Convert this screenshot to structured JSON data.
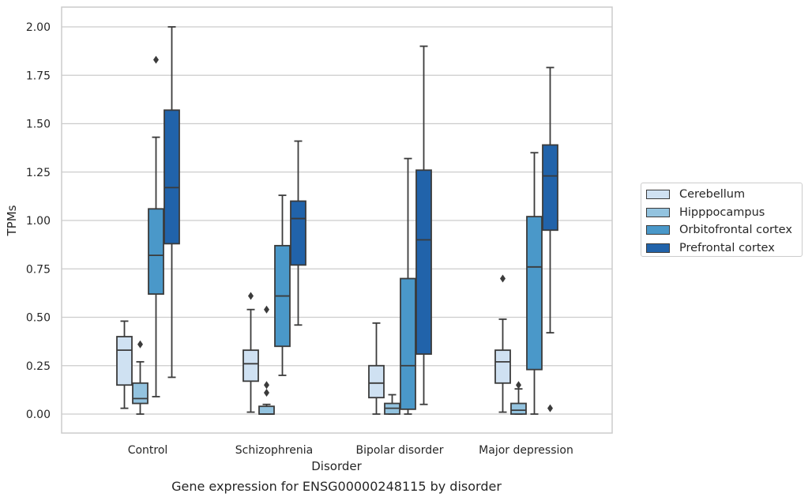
{
  "chart_data": {
    "type": "boxplot",
    "title": "Gene expression for ENSG00000248115 by disorder",
    "xlabel": "Disorder",
    "ylabel": "TPMs",
    "ylim": [
      -0.1,
      2.1
    ],
    "yticks": [
      "0.00",
      "0.25",
      "0.50",
      "0.75",
      "1.00",
      "1.25",
      "1.50",
      "1.75",
      "2.00"
    ],
    "categories": [
      "Control",
      "Schizophrenia",
      "Bipolar disorder",
      "Major depression"
    ],
    "grid": "horizontal",
    "legend_position": "right",
    "series": [
      {
        "name": "Cerebellum",
        "color": "#cfe1f2",
        "boxes": [
          {
            "whisker_low": 0.03,
            "q1": 0.15,
            "median": 0.33,
            "q3": 0.4,
            "whisker_high": 0.48,
            "outliers": []
          },
          {
            "whisker_low": 0.01,
            "q1": 0.17,
            "median": 0.26,
            "q3": 0.33,
            "whisker_high": 0.54,
            "outliers": [
              0.61
            ]
          },
          {
            "whisker_low": 0.0,
            "q1": 0.085,
            "median": 0.16,
            "q3": 0.25,
            "whisker_high": 0.47,
            "outliers": []
          },
          {
            "whisker_low": 0.01,
            "q1": 0.16,
            "median": 0.27,
            "q3": 0.33,
            "whisker_high": 0.49,
            "outliers": [
              0.7
            ]
          }
        ]
      },
      {
        "name": "Hipppocampus",
        "color": "#93c3df",
        "boxes": [
          {
            "whisker_low": 0.0,
            "q1": 0.055,
            "median": 0.08,
            "q3": 0.16,
            "whisker_high": 0.27,
            "outliers": [
              0.36
            ]
          },
          {
            "whisker_low": 0.0,
            "q1": 0.0,
            "median": 0.0,
            "q3": 0.04,
            "whisker_high": 0.05,
            "outliers": [
              0.11,
              0.15,
              0.54
            ]
          },
          {
            "whisker_low": 0.0,
            "q1": 0.0,
            "median": 0.03,
            "q3": 0.055,
            "whisker_high": 0.1,
            "outliers": []
          },
          {
            "whisker_low": 0.0,
            "q1": 0.0,
            "median": 0.02,
            "q3": 0.055,
            "whisker_high": 0.13,
            "outliers": [
              0.15
            ]
          }
        ]
      },
      {
        "name": "Orbitofrontal cortex",
        "color": "#4a98c9",
        "boxes": [
          {
            "whisker_low": 0.09,
            "q1": 0.62,
            "median": 0.82,
            "q3": 1.06,
            "whisker_high": 1.43,
            "outliers": [
              1.83
            ]
          },
          {
            "whisker_low": 0.2,
            "q1": 0.35,
            "median": 0.61,
            "q3": 0.87,
            "whisker_high": 1.13,
            "outliers": []
          },
          {
            "whisker_low": 0.0,
            "q1": 0.025,
            "median": 0.25,
            "q3": 0.7,
            "whisker_high": 1.32,
            "outliers": []
          },
          {
            "whisker_low": 0.0,
            "q1": 0.23,
            "median": 0.76,
            "q3": 1.02,
            "whisker_high": 1.35,
            "outliers": []
          }
        ]
      },
      {
        "name": "Prefrontal cortex",
        "color": "#2163aa",
        "boxes": [
          {
            "whisker_low": 0.19,
            "q1": 0.88,
            "median": 1.17,
            "q3": 1.57,
            "whisker_high": 2.0,
            "outliers": []
          },
          {
            "whisker_low": 0.46,
            "q1": 0.77,
            "median": 1.01,
            "q3": 1.1,
            "whisker_high": 1.41,
            "outliers": []
          },
          {
            "whisker_low": 0.05,
            "q1": 0.31,
            "median": 0.9,
            "q3": 1.26,
            "whisker_high": 1.9,
            "outliers": []
          },
          {
            "whisker_low": 0.42,
            "q1": 0.95,
            "median": 1.23,
            "q3": 1.39,
            "whisker_high": 1.79,
            "outliers": [
              0.03
            ]
          }
        ]
      }
    ]
  }
}
